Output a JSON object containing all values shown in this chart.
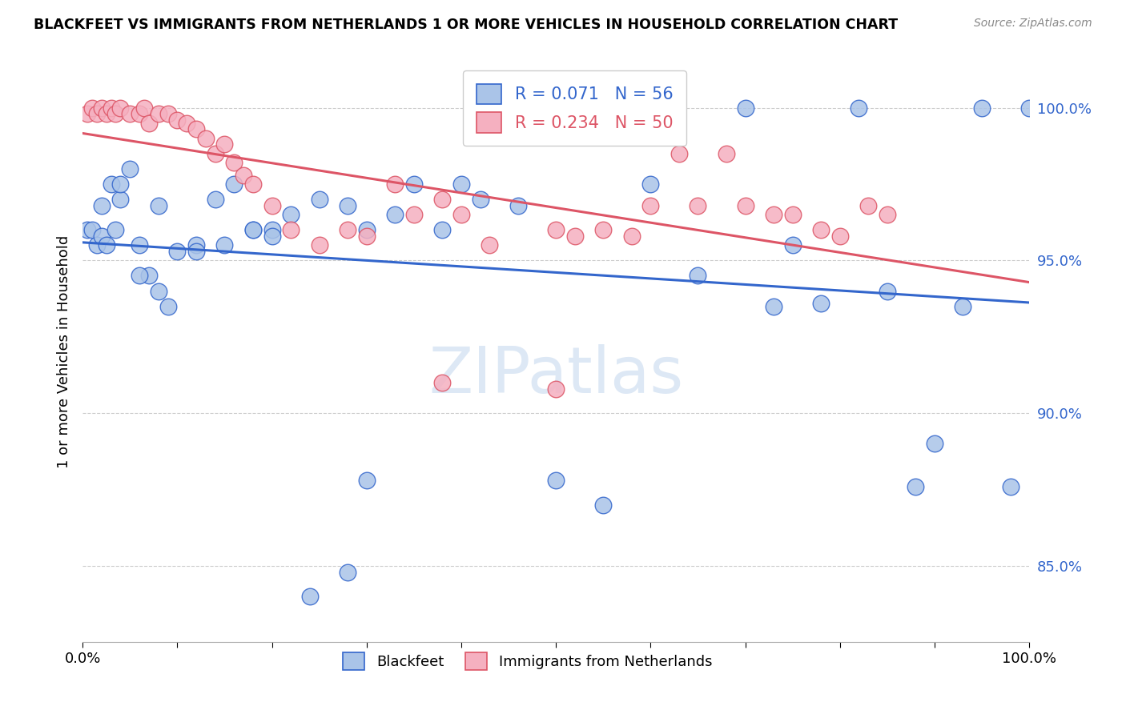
{
  "title": "BLACKFEET VS IMMIGRANTS FROM NETHERLANDS 1 OR MORE VEHICLES IN HOUSEHOLD CORRELATION CHART",
  "source": "Source: ZipAtlas.com",
  "ylabel": "1 or more Vehicles in Household",
  "legend_blue_label": "Blackfeet",
  "legend_pink_label": "Immigrants from Netherlands",
  "R_blue": 0.071,
  "N_blue": 56,
  "R_pink": 0.234,
  "N_pink": 50,
  "blue_color": "#aac4e8",
  "pink_color": "#f5b0c0",
  "blue_line_color": "#3366cc",
  "pink_line_color": "#dd5566",
  "watermark_color": "#dde8f5",
  "xlim": [
    0.0,
    1.0
  ],
  "ylim": [
    0.825,
    1.015
  ],
  "yticks": [
    0.85,
    0.9,
    0.95,
    1.0
  ],
  "ytick_labels": [
    "85.0%",
    "90.0%",
    "95.0%",
    "100.0%"
  ],
  "xtick_positions": [
    0.0,
    0.1,
    0.2,
    0.3,
    0.4,
    0.5,
    0.6,
    0.7,
    0.8,
    0.9,
    1.0
  ],
  "xtick_labels": [
    "0.0%",
    "",
    "",
    "",
    "",
    "",
    "",
    "",
    "",
    "",
    "100.0%"
  ],
  "blue_x": [
    0.005,
    0.01,
    0.015,
    0.02,
    0.025,
    0.03,
    0.035,
    0.04,
    0.05,
    0.06,
    0.07,
    0.08,
    0.09,
    0.1,
    0.12,
    0.14,
    0.16,
    0.18,
    0.2,
    0.22,
    0.25,
    0.28,
    0.3,
    0.33,
    0.35,
    0.38,
    0.4,
    0.42,
    0.46,
    0.5,
    0.55,
    0.6,
    0.65,
    0.7,
    0.73,
    0.75,
    0.78,
    0.82,
    0.85,
    0.88,
    0.9,
    0.93,
    0.95,
    0.98,
    1.0,
    0.02,
    0.04,
    0.06,
    0.08,
    0.12,
    0.15,
    0.18,
    0.2,
    0.24,
    0.28,
    0.3
  ],
  "blue_y": [
    0.96,
    0.96,
    0.955,
    0.958,
    0.955,
    0.975,
    0.96,
    0.97,
    0.98,
    0.955,
    0.945,
    0.94,
    0.935,
    0.953,
    0.955,
    0.97,
    0.975,
    0.96,
    0.96,
    0.965,
    0.97,
    0.968,
    0.96,
    0.965,
    0.975,
    0.96,
    0.975,
    0.97,
    0.968,
    0.878,
    0.87,
    0.975,
    0.945,
    1.0,
    0.935,
    0.955,
    0.936,
    1.0,
    0.94,
    0.876,
    0.89,
    0.935,
    1.0,
    0.876,
    1.0,
    0.968,
    0.975,
    0.945,
    0.968,
    0.953,
    0.955,
    0.96,
    0.958,
    0.84,
    0.848,
    0.878
  ],
  "pink_x": [
    0.005,
    0.01,
    0.015,
    0.02,
    0.025,
    0.03,
    0.035,
    0.04,
    0.05,
    0.06,
    0.065,
    0.07,
    0.08,
    0.09,
    0.1,
    0.11,
    0.12,
    0.13,
    0.14,
    0.15,
    0.16,
    0.17,
    0.18,
    0.2,
    0.22,
    0.25,
    0.28,
    0.3,
    0.33,
    0.35,
    0.38,
    0.4,
    0.43,
    0.5,
    0.52,
    0.55,
    0.58,
    0.6,
    0.63,
    0.65,
    0.68,
    0.7,
    0.73,
    0.75,
    0.78,
    0.8,
    0.83,
    0.85,
    0.38,
    0.5
  ],
  "pink_y": [
    0.998,
    1.0,
    0.998,
    1.0,
    0.998,
    1.0,
    0.998,
    1.0,
    0.998,
    0.998,
    1.0,
    0.995,
    0.998,
    0.998,
    0.996,
    0.995,
    0.993,
    0.99,
    0.985,
    0.988,
    0.982,
    0.978,
    0.975,
    0.968,
    0.96,
    0.955,
    0.96,
    0.958,
    0.975,
    0.965,
    0.97,
    0.965,
    0.955,
    0.96,
    0.958,
    0.96,
    0.958,
    0.968,
    0.985,
    0.968,
    0.985,
    0.968,
    0.965,
    0.965,
    0.96,
    0.958,
    0.968,
    0.965,
    0.91,
    0.908
  ]
}
